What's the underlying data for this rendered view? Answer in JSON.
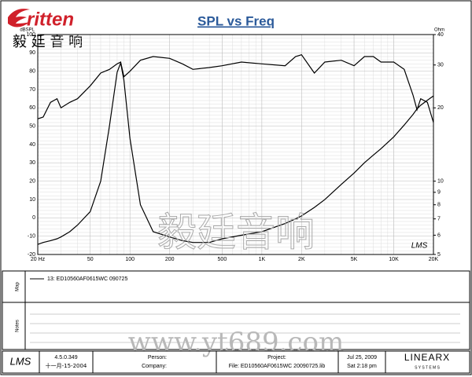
{
  "header": {
    "logo": "ritten",
    "chinese": "毅 廷 音 响"
  },
  "chart_data": {
    "type": "line",
    "title": "SPL vs Freq",
    "ylabel": "dBSPL",
    "y2label": "Ohm",
    "xlog": true,
    "y2log": true,
    "grid": true,
    "minor_grid": true,
    "x": [
      20,
      22,
      25,
      28,
      30,
      35,
      40,
      50,
      60,
      70,
      80,
      85,
      90,
      100,
      120,
      150,
      200,
      250,
      300,
      400,
      500,
      700,
      1000,
      1500,
      1800,
      2000,
      2500,
      3000,
      4000,
      5000,
      6000,
      7000,
      8000,
      10000,
      12000,
      14000,
      15000,
      16000,
      18000,
      20000
    ],
    "series": [
      {
        "name": "13: ED10560AF0615WC   090725",
        "color": "#000000",
        "values": [
          54,
          55,
          63,
          65,
          60,
          63,
          65,
          72,
          79,
          81,
          84,
          85,
          77,
          80,
          86,
          88,
          87,
          84,
          81,
          82,
          83,
          85,
          84,
          83,
          88,
          89,
          79,
          85,
          86,
          83,
          88,
          88,
          85,
          85,
          81,
          67,
          59,
          65,
          63,
          52
        ]
      },
      {
        "axis": "y2",
        "color": "#000000",
        "values": [
          5.5,
          5.6,
          5.7,
          5.8,
          5.9,
          6.2,
          6.6,
          7.5,
          10,
          16.9,
          28,
          30.6,
          26,
          15,
          8.0,
          6.2,
          5.9,
          5.7,
          5.6,
          5.6,
          5.8,
          6.0,
          6.2,
          6.7,
          7.0,
          7.2,
          7.8,
          8.4,
          9.7,
          10.8,
          11.9,
          12.8,
          13.6,
          15.2,
          17,
          18.8,
          19.8,
          20.5,
          21.5,
          22.4
        ]
      }
    ],
    "xlim": [
      20,
      20000
    ],
    "xticks": [
      {
        "value": 20,
        "label": "20 Hz"
      },
      50,
      100,
      200,
      500,
      {
        "value": 1000,
        "label": "1K"
      },
      {
        "value": 2000,
        "label": "2K"
      },
      {
        "value": 5000,
        "label": "5K"
      },
      {
        "value": 10000,
        "label": "10K"
      },
      {
        "value": 20000,
        "label": "20K"
      }
    ],
    "ylim": [
      -20,
      100
    ],
    "yticks": [
      -20,
      -10,
      0,
      10,
      20,
      30,
      40,
      50,
      60,
      70,
      80,
      90,
      100
    ],
    "y2lim": [
      5,
      40
    ],
    "y2ticks": [
      5,
      6,
      7,
      8,
      9,
      10,
      20,
      30,
      40
    ],
    "plot_mark": "LMS"
  },
  "panels": {
    "map": "Map",
    "notes": "Notes"
  },
  "watermarks": {
    "chinese": "毅廷音响",
    "url": "www.yt689.com"
  },
  "footer": {
    "logo": "LMS",
    "version": "4.5.0.349",
    "build_date": "十一月-15-2004",
    "person": "Person:",
    "company": "Company:",
    "project": "Project:",
    "file": "File: ED10560AF0615WC  20090725.lib",
    "date": "Jul 25, 2009",
    "time": "Sat  2:18 pm",
    "brand": "LINEARX",
    "brand_sub": "S Y S T E M S"
  }
}
